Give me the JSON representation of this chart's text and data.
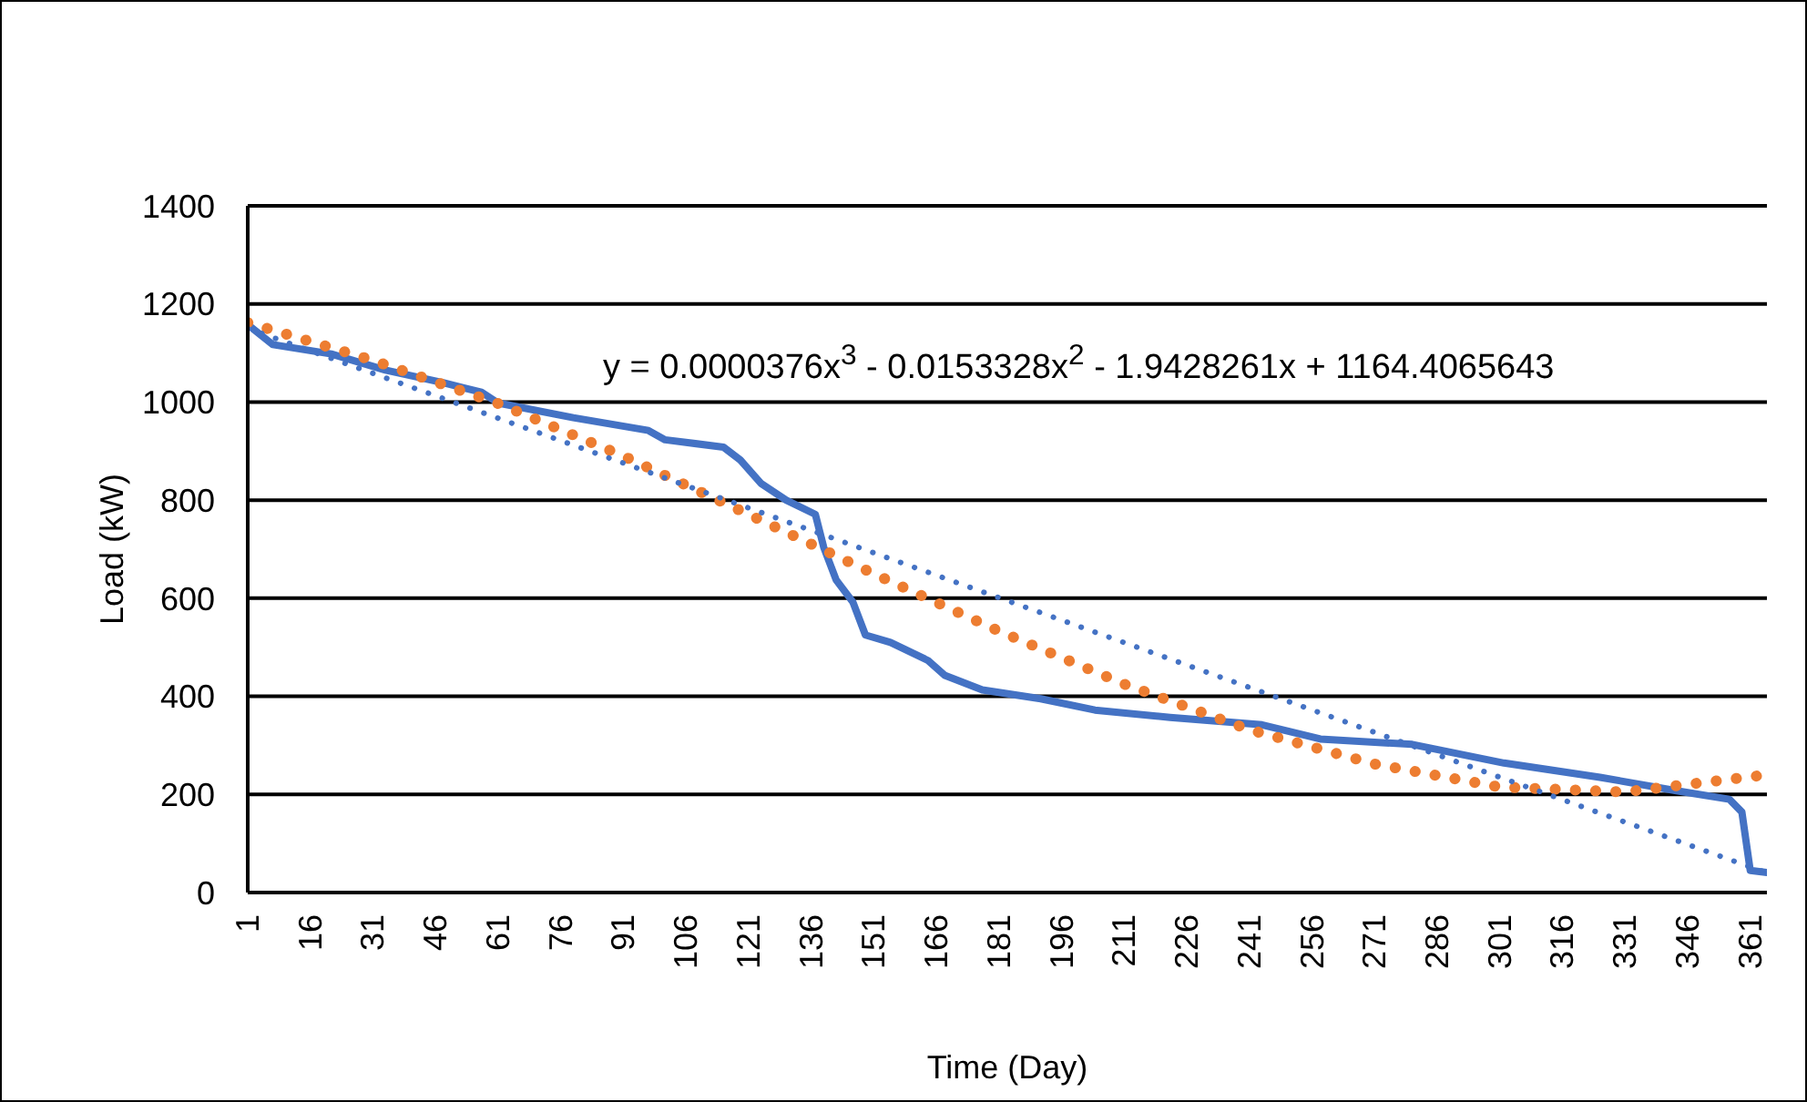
{
  "chart_data": {
    "type": "line",
    "xlabel": "Time (Day)",
    "ylabel": "Load (kW)",
    "annotations": [
      "y = 0.0000376x$^{3}$ - 0.0153328x$^{2}$ - 1.9428261x + 1164.4065643"
    ],
    "xlim": [
      1,
      365
    ],
    "xticks": [
      1,
      16,
      31,
      46,
      61,
      76,
      91,
      106,
      121,
      136,
      151,
      166,
      181,
      196,
      211,
      226,
      241,
      256,
      271,
      286,
      301,
      316,
      331,
      346,
      361
    ],
    "ylim": [
      0,
      1400
    ],
    "yticks": [
      0,
      200,
      400,
      600,
      800,
      1000,
      1200,
      1400
    ],
    "grid": "y",
    "series": [
      {
        "color": "#4472c4",
        "line_style": "solid",
        "x": [
          1,
          7,
          21,
          34,
          48,
          57,
          61,
          79,
          97,
          101,
          115,
          119,
          124,
          130,
          137,
          139,
          142,
          146,
          149,
          155,
          164,
          168,
          177,
          191,
          204,
          222,
          244,
          258,
          280,
          302,
          325,
          343,
          356,
          359,
          361,
          365
        ],
        "values": [
          1158,
          1117,
          1098,
          1065,
          1039,
          1020,
          998,
          968,
          942,
          923,
          908,
          882,
          834,
          800,
          771,
          704,
          637,
          592,
          525,
          510,
          473,
          443,
          413,
          395,
          372,
          357,
          342,
          313,
          302,
          264,
          235,
          208,
          190,
          164,
          45,
          41
        ]
      },
      {
        "color": "#ed7d31",
        "line_style": "dotted",
        "x": [
          1,
          31,
          61,
          91,
          121,
          151,
          181,
          211,
          241,
          271,
          301,
          331,
          365
        ],
        "values": [
          1162,
          1085,
          997,
          890,
          771,
          650,
          533,
          425,
          332,
          262,
          215,
          205,
          240
        ]
      },
      {
        "color": "#4472c4",
        "line_style": "dotted",
        "x": [
          1,
          365
        ],
        "values": [
          1150,
          40
        ]
      }
    ]
  }
}
